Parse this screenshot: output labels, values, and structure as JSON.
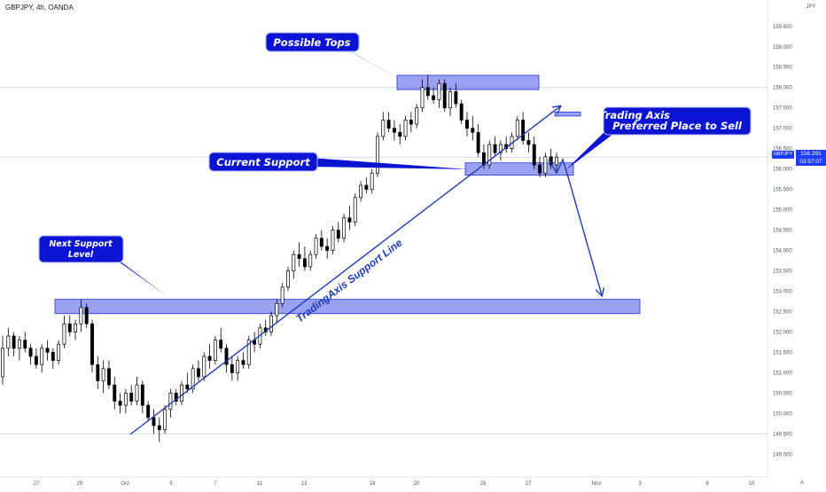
{
  "header": {
    "title": "GBPJPY, 4h, OANDA",
    "currency": "JPY"
  },
  "price_tag": {
    "symbol": "GBPJPY",
    "price": "156.291",
    "countdown": "03:57:07"
  },
  "colors": {
    "zone_fill": "#7b83ef",
    "zone_border": "#1e2de0",
    "trend_line": "#1e3cb4",
    "callout_bg": "#0a14d2",
    "bull_candle": "#000000",
    "bear_candle": "#000000",
    "price_line": "#1e3cff",
    "grid_bg": "#fafafa"
  },
  "annotations": {
    "possible_tops": "Possible Tops",
    "current_support": "Current Support",
    "next_support_line1": "Next Support",
    "next_support_line2": "Level",
    "trading_axis_line1": "Trading Axis",
    "trading_axis_line2": "Preferred Place to Sell",
    "support_line_label": "TradingAxis Support Line"
  },
  "footer": {
    "auto_label": "A"
  },
  "chart_data": {
    "type": "candlestick",
    "symbol": "GBPJPY",
    "timeframe": "4h",
    "source": "OANDA",
    "ylim": [
      148.5,
      160.0
    ],
    "y_ticks": [
      "149.000",
      "149.500",
      "150.000",
      "150.500",
      "151.000",
      "151.500",
      "152.000",
      "152.500",
      "153.000",
      "153.500",
      "154.000",
      "154.500",
      "155.000",
      "155.500",
      "156.000",
      "156.500",
      "157.000",
      "157.500",
      "158.000",
      "158.500",
      "159.000",
      "159.500"
    ],
    "x_ticks": [
      "27",
      "29",
      "Oct",
      "5",
      "7",
      "11",
      "13",
      "18",
      "20",
      "25",
      "27",
      "Nov",
      "3",
      "8",
      "10"
    ],
    "last_price": 156.291,
    "horizontal_lines": [
      158.0,
      156.291,
      149.5
    ],
    "zones": [
      {
        "name": "possible-tops-zone",
        "price_low": 157.95,
        "price_high": 158.3
      },
      {
        "name": "current-support-zone",
        "price_low": 155.85,
        "price_high": 156.15
      },
      {
        "name": "next-support-zone",
        "price_low": 152.45,
        "price_high": 152.8
      },
      {
        "name": "small-zone",
        "price_low": 157.3,
        "price_high": 157.4
      }
    ],
    "candles": [
      [
        150.9,
        151.9,
        150.7,
        151.6
      ],
      [
        151.6,
        152.1,
        151.4,
        151.9
      ],
      [
        151.9,
        152.0,
        151.4,
        151.6
      ],
      [
        151.6,
        151.9,
        151.3,
        151.8
      ],
      [
        151.8,
        152.0,
        151.5,
        151.6
      ],
      [
        151.6,
        151.7,
        151.2,
        151.4
      ],
      [
        151.4,
        151.6,
        151.1,
        151.2
      ],
      [
        151.2,
        151.7,
        151.0,
        151.6
      ],
      [
        151.6,
        151.8,
        151.3,
        151.5
      ],
      [
        151.5,
        151.6,
        151.1,
        151.3
      ],
      [
        151.3,
        151.8,
        151.2,
        151.7
      ],
      [
        151.7,
        152.4,
        151.6,
        152.2
      ],
      [
        152.2,
        152.4,
        151.9,
        152.0
      ],
      [
        152.0,
        152.3,
        151.8,
        152.2
      ],
      [
        152.2,
        152.8,
        152.0,
        152.6
      ],
      [
        152.6,
        152.7,
        152.1,
        152.2
      ],
      [
        152.2,
        152.3,
        151.0,
        151.2
      ],
      [
        151.2,
        151.4,
        150.6,
        150.8
      ],
      [
        150.8,
        151.3,
        150.5,
        151.1
      ],
      [
        151.1,
        151.3,
        150.6,
        150.7
      ],
      [
        150.7,
        150.9,
        150.1,
        150.3
      ],
      [
        150.3,
        150.5,
        150.0,
        150.2
      ],
      [
        150.2,
        150.6,
        150.0,
        150.5
      ],
      [
        150.5,
        150.7,
        150.2,
        150.3
      ],
      [
        150.3,
        150.9,
        150.2,
        150.7
      ],
      [
        150.7,
        150.8,
        150.0,
        150.2
      ],
      [
        150.2,
        150.3,
        149.8,
        149.9
      ],
      [
        149.9,
        150.1,
        149.5,
        149.7
      ],
      [
        149.7,
        149.9,
        149.3,
        149.6
      ],
      [
        149.6,
        150.2,
        149.5,
        150.1
      ],
      [
        150.1,
        150.6,
        149.9,
        150.5
      ],
      [
        150.5,
        150.6,
        150.2,
        150.3
      ],
      [
        150.3,
        150.8,
        150.2,
        150.7
      ],
      [
        150.7,
        151.0,
        150.5,
        150.6
      ],
      [
        150.6,
        151.2,
        150.5,
        151.1
      ],
      [
        151.1,
        151.3,
        150.8,
        150.9
      ],
      [
        150.9,
        151.5,
        150.8,
        151.4
      ],
      [
        151.4,
        151.7,
        151.1,
        151.3
      ],
      [
        151.3,
        151.9,
        151.2,
        151.8
      ],
      [
        151.8,
        152.1,
        151.5,
        151.6
      ],
      [
        151.6,
        151.7,
        151.0,
        151.2
      ],
      [
        151.2,
        151.4,
        150.8,
        151.0
      ],
      [
        151.0,
        151.4,
        150.8,
        151.3
      ],
      [
        151.3,
        151.5,
        151.1,
        151.2
      ],
      [
        151.2,
        151.9,
        151.1,
        151.8
      ],
      [
        151.8,
        152.0,
        151.5,
        151.7
      ],
      [
        151.7,
        152.2,
        151.6,
        152.1
      ],
      [
        152.1,
        152.3,
        151.9,
        152.0
      ],
      [
        152.0,
        152.5,
        151.9,
        152.4
      ],
      [
        152.4,
        152.8,
        152.2,
        152.7
      ],
      [
        152.7,
        153.2,
        152.6,
        153.1
      ],
      [
        153.1,
        153.6,
        153.0,
        153.5
      ],
      [
        153.5,
        154.0,
        153.3,
        153.9
      ],
      [
        153.9,
        154.2,
        153.6,
        153.8
      ],
      [
        153.8,
        154.1,
        153.5,
        153.6
      ],
      [
        153.6,
        154.0,
        153.5,
        153.9
      ],
      [
        153.9,
        154.4,
        153.8,
        154.3
      ],
      [
        154.3,
        154.5,
        154.0,
        154.1
      ],
      [
        154.1,
        154.3,
        153.8,
        154.0
      ],
      [
        154.0,
        154.6,
        153.9,
        154.5
      ],
      [
        154.5,
        154.7,
        154.2,
        154.3
      ],
      [
        154.3,
        154.9,
        154.2,
        154.8
      ],
      [
        154.8,
        155.1,
        154.5,
        154.7
      ],
      [
        154.7,
        155.4,
        154.6,
        155.3
      ],
      [
        155.3,
        155.7,
        155.2,
        155.6
      ],
      [
        155.6,
        155.8,
        155.4,
        155.5
      ],
      [
        155.5,
        156.0,
        155.4,
        155.9
      ],
      [
        155.9,
        156.9,
        155.8,
        156.8
      ],
      [
        156.8,
        157.4,
        156.7,
        157.2
      ],
      [
        157.2,
        157.4,
        156.9,
        157.0
      ],
      [
        157.0,
        157.2,
        156.7,
        156.9
      ],
      [
        156.9,
        157.1,
        156.6,
        156.8
      ],
      [
        156.8,
        157.3,
        156.7,
        157.2
      ],
      [
        157.2,
        157.4,
        156.9,
        157.1
      ],
      [
        157.1,
        157.6,
        157.0,
        157.5
      ],
      [
        157.5,
        158.2,
        157.4,
        158.0
      ],
      [
        158.0,
        158.3,
        157.7,
        157.8
      ],
      [
        157.8,
        158.0,
        157.6,
        157.7
      ],
      [
        157.7,
        158.2,
        157.5,
        158.1
      ],
      [
        158.1,
        158.2,
        157.4,
        157.5
      ],
      [
        157.5,
        158.0,
        157.3,
        157.9
      ],
      [
        157.9,
        158.1,
        157.5,
        157.6
      ],
      [
        157.6,
        157.7,
        157.1,
        157.2
      ],
      [
        157.2,
        157.4,
        156.8,
        157.0
      ],
      [
        157.0,
        157.3,
        156.7,
        156.9
      ],
      [
        156.9,
        157.1,
        156.3,
        156.4
      ],
      [
        156.4,
        156.6,
        156.0,
        156.1
      ],
      [
        156.1,
        156.7,
        156.0,
        156.6
      ],
      [
        156.6,
        156.8,
        156.3,
        156.4
      ],
      [
        156.4,
        156.7,
        156.2,
        156.6
      ],
      [
        156.6,
        156.8,
        156.4,
        156.5
      ],
      [
        156.5,
        156.9,
        156.4,
        156.8
      ],
      [
        156.8,
        157.3,
        156.7,
        157.2
      ],
      [
        157.2,
        157.4,
        156.6,
        156.7
      ],
      [
        156.7,
        156.9,
        156.4,
        156.6
      ],
      [
        156.6,
        156.8,
        156.0,
        156.1
      ],
      [
        156.1,
        156.3,
        155.8,
        155.9
      ],
      [
        155.9,
        156.4,
        155.8,
        156.3
      ],
      [
        156.3,
        156.5,
        156.0,
        156.1
      ],
      [
        156.1,
        156.4,
        155.9,
        156.291
      ]
    ]
  }
}
